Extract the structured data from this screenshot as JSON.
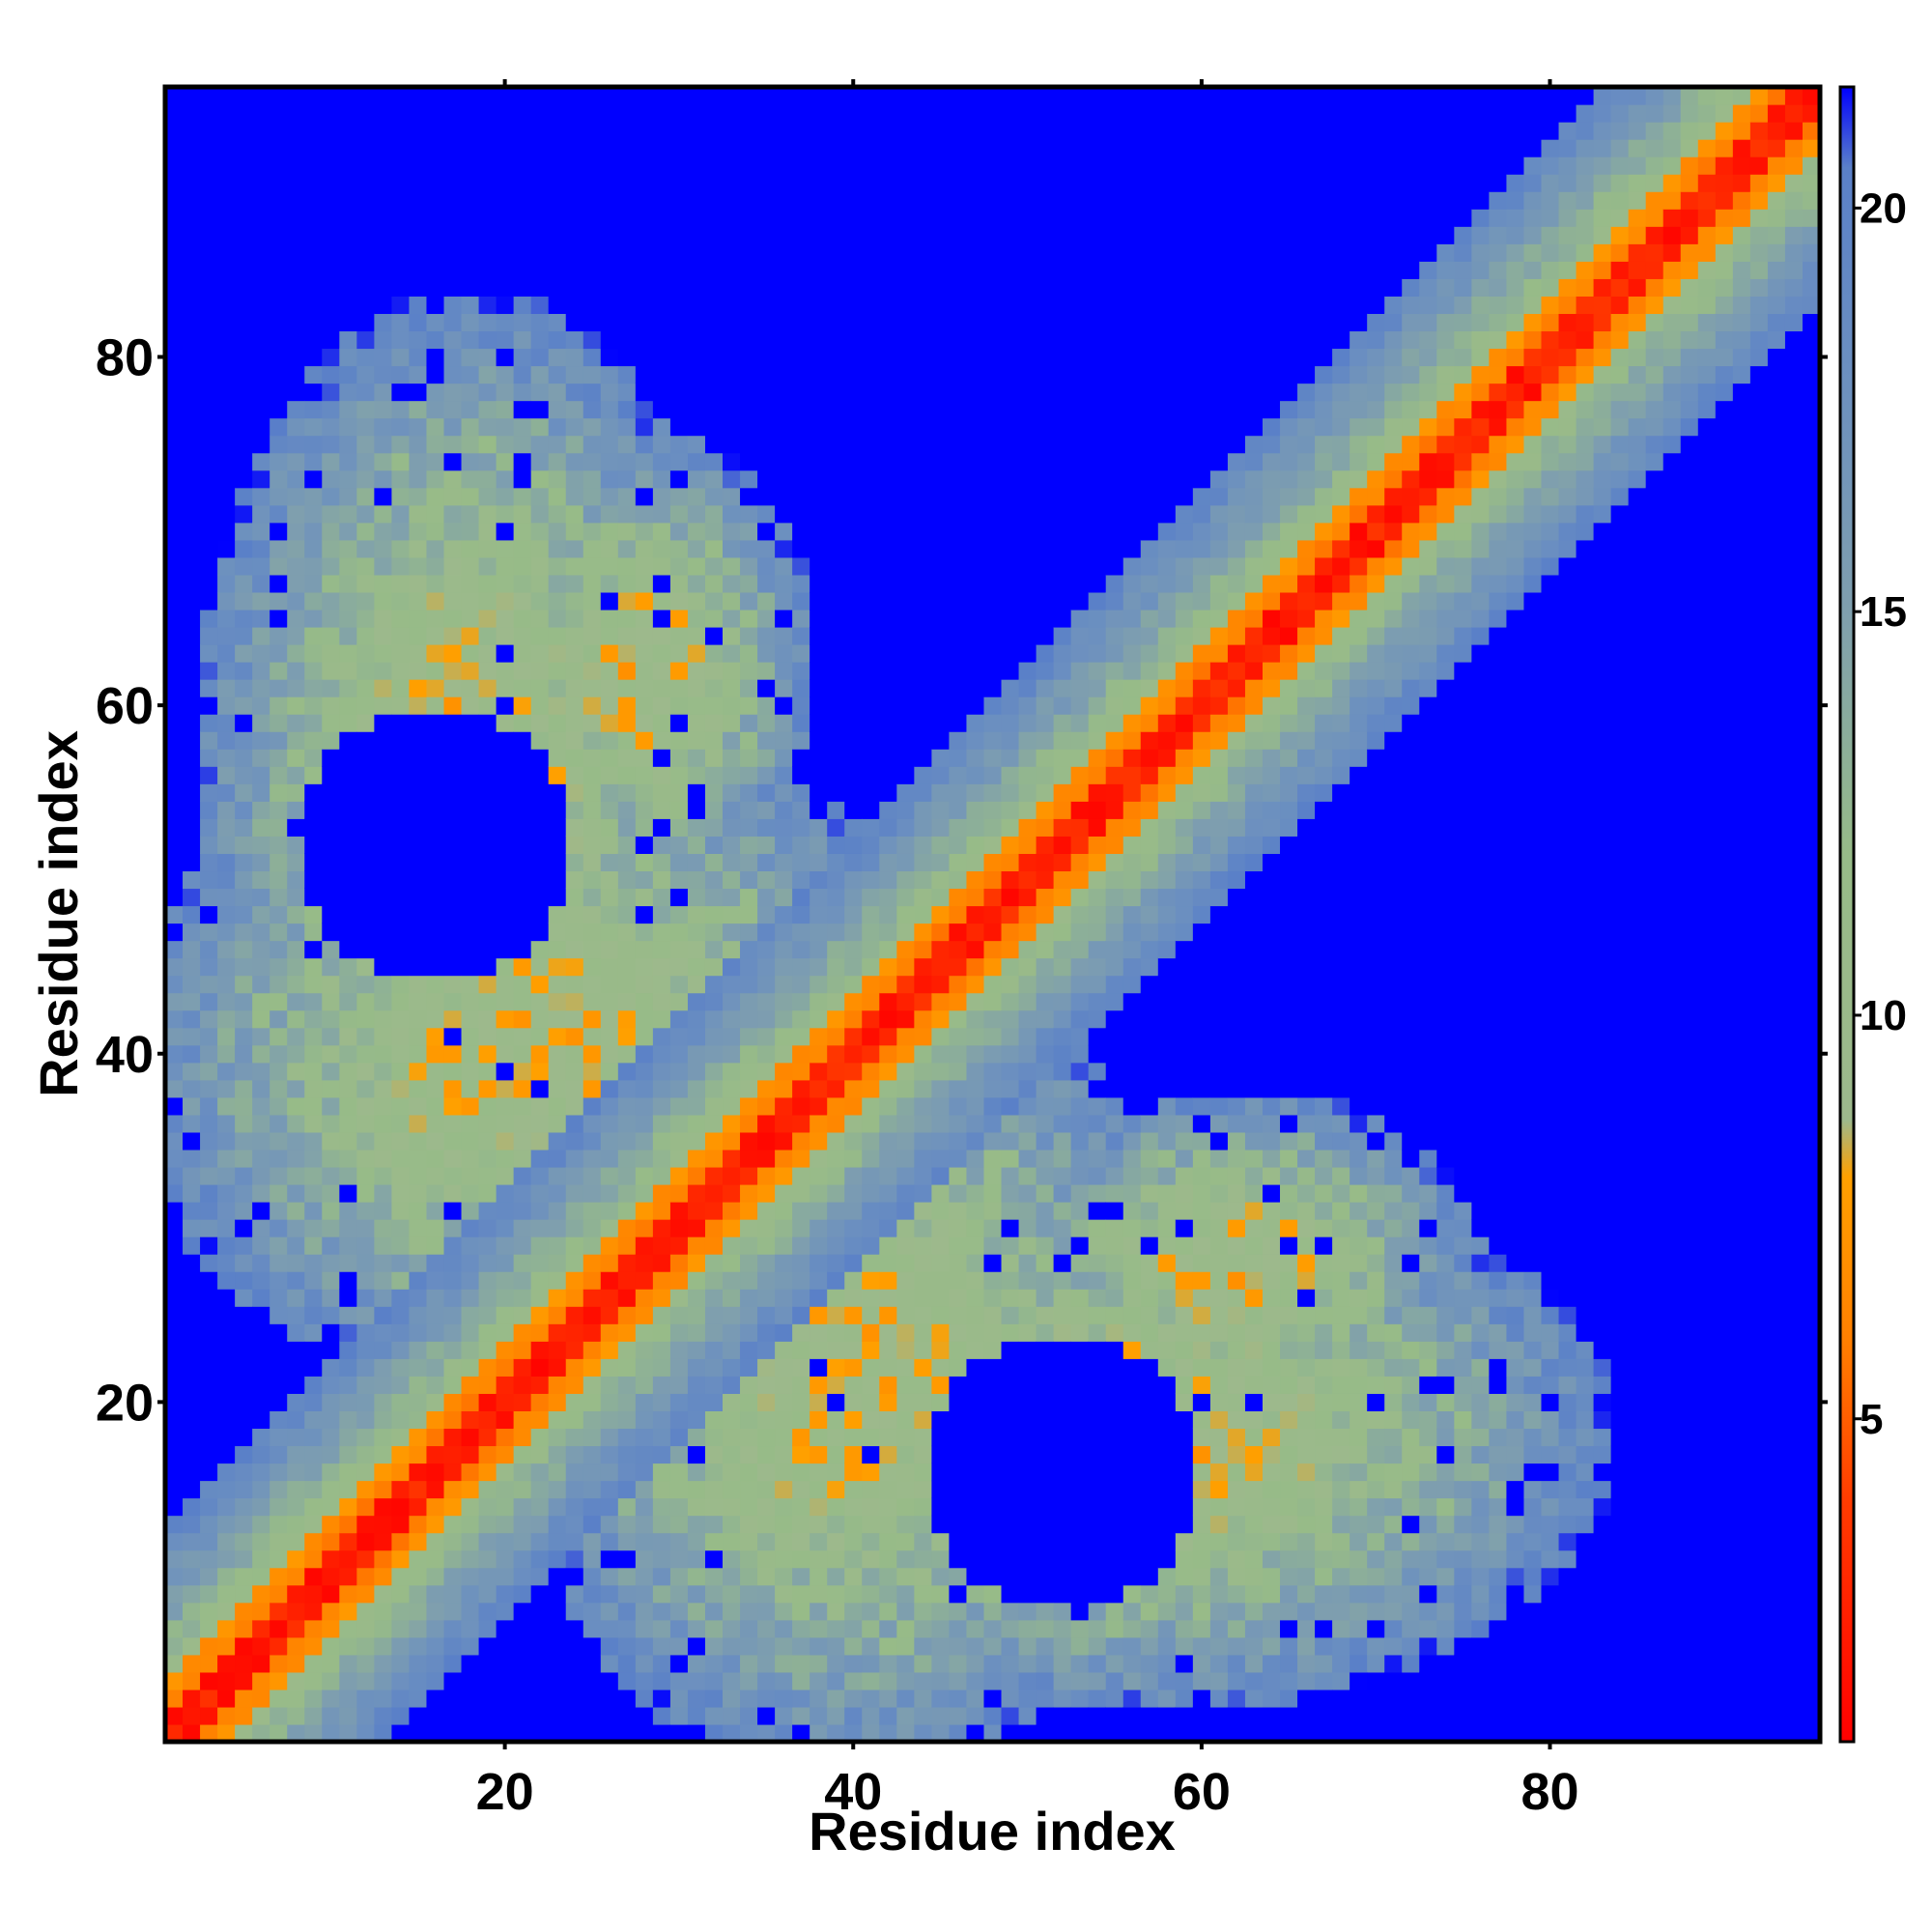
{
  "chart_data": {
    "type": "heatmap",
    "title": "",
    "xlabel": "Residue index",
    "ylabel": "Residue index",
    "n_residues": 95,
    "xlim": [
      1,
      95
    ],
    "ylim": [
      1,
      95
    ],
    "x_ticks": [
      20,
      40,
      60,
      80
    ],
    "y_ticks": [
      20,
      40,
      60,
      80
    ],
    "colorbar": {
      "ticks": [
        5,
        10,
        15,
        20
      ],
      "range": [
        1,
        21.5
      ],
      "cutoff": 21.5,
      "stops": [
        {
          "value": 1,
          "color": "#ff0000"
        },
        {
          "value": 4,
          "color": "#ff3c00"
        },
        {
          "value": 6,
          "color": "#ff8000"
        },
        {
          "value": 8,
          "color": "#ffa000"
        },
        {
          "value": 8.7,
          "color": "#9db98c"
        },
        {
          "value": 12,
          "color": "#97bb88"
        },
        {
          "value": 15,
          "color": "#7f9fae"
        },
        {
          "value": 18,
          "color": "#6b8fc0"
        },
        {
          "value": 20.5,
          "color": "#5a80c8"
        },
        {
          "value": 21.5,
          "color": "#0000ff"
        }
      ]
    },
    "colors": {
      "background": "#0000ff",
      "near": "#ff0000",
      "mid": "#ff8000",
      "far": "#6b8fc0"
    },
    "structure": {
      "description_of_values": "pairwise residue distance map, symmetric about the diagonal",
      "diagonal_band_width": 9,
      "contact_regions": [
        {
          "i_range": [
            1,
            45
          ],
          "j_range": [
            20,
            60
          ]
        },
        {
          "i_range": [
            20,
            58
          ],
          "j_range": [
            1,
            45
          ]
        },
        {
          "i_range": [
            4,
            36
          ],
          "j_range": [
            30,
            84
          ]
        },
        {
          "i_range": [
            30,
            84
          ],
          "j_range": [
            4,
            36
          ]
        },
        {
          "i_range": [
            44,
            94
          ],
          "j_range": [
            38,
            96
          ]
        }
      ]
    }
  }
}
